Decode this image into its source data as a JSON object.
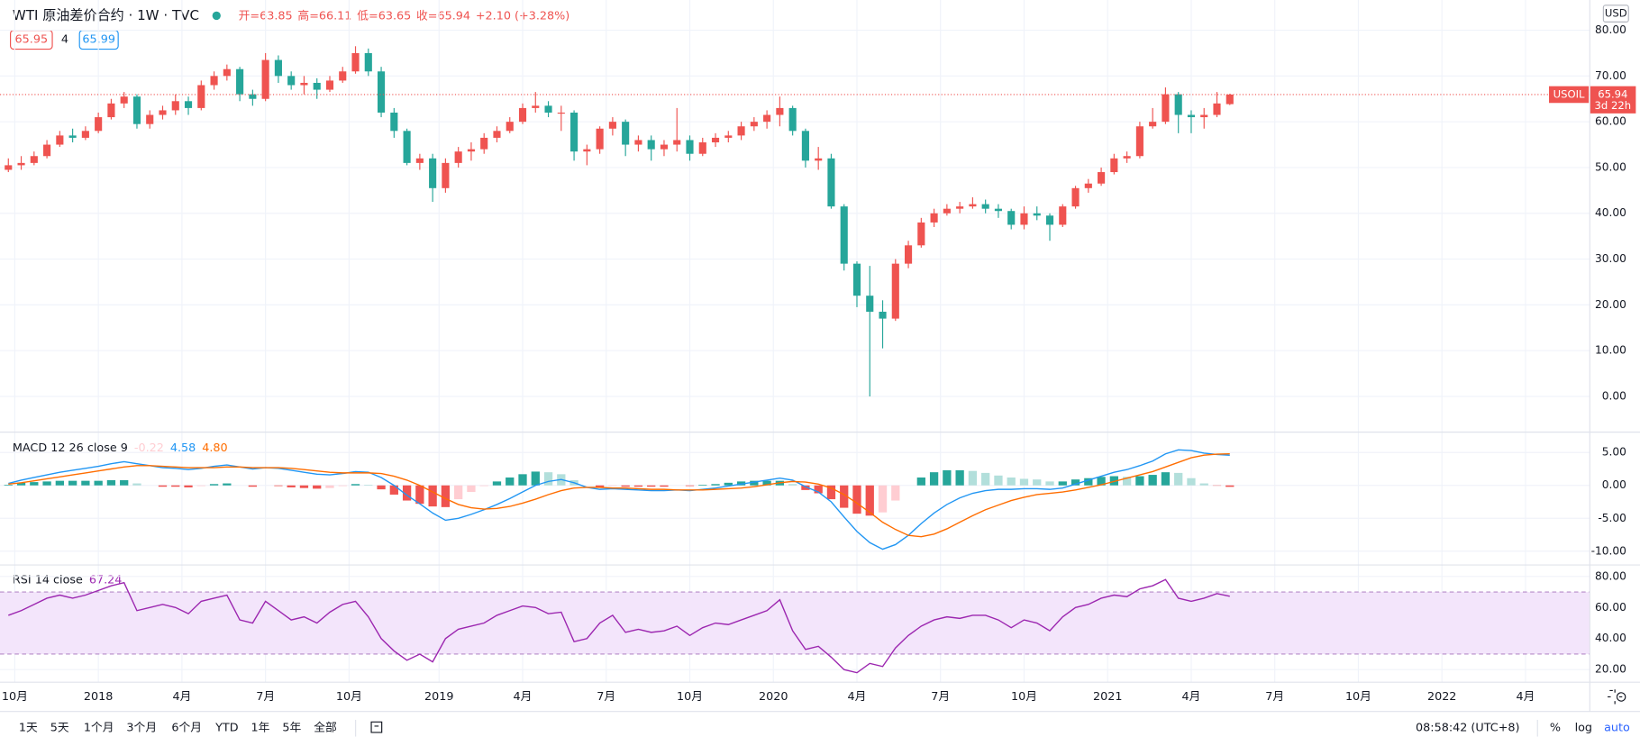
{
  "header": {
    "symbol": "WTI 原油差价合约 · 1W · TVC",
    "ohlc": [
      "开=63.85",
      "高=66.11",
      "低=63.65",
      "收=65.94"
    ],
    "change": "+2.10 (+3.28%)",
    "bid": "65.95",
    "spread": "4",
    "ask": "65.99"
  },
  "chart_data": [
    {
      "type": "candlestick",
      "currency": "USD",
      "up_color": "#ef5350",
      "down_color": "#26a69a",
      "grid": true,
      "candles": [
        [
          49.5,
          52,
          49,
          50.5
        ],
        [
          50.5,
          52.5,
          49.5,
          51
        ],
        [
          51,
          53.5,
          50.5,
          52.5
        ],
        [
          52.5,
          56,
          52,
          55
        ],
        [
          55,
          58,
          54.5,
          57
        ],
        [
          57,
          58.5,
          55.5,
          56.5
        ],
        [
          56.5,
          59,
          56,
          58
        ],
        [
          58,
          62,
          57.5,
          61
        ],
        [
          61,
          65,
          60.5,
          64
        ],
        [
          64,
          66.5,
          63,
          65.5
        ],
        [
          65.5,
          66,
          58.5,
          59.5
        ],
        [
          59.5,
          62.5,
          58.5,
          61.5
        ],
        [
          61.5,
          63.5,
          60.5,
          62.5
        ],
        [
          62.5,
          66,
          61.5,
          64.5
        ],
        [
          64.5,
          65.5,
          61.5,
          63
        ],
        [
          63,
          69,
          62.5,
          68
        ],
        [
          68,
          71,
          67,
          70
        ],
        [
          70,
          72.5,
          69,
          71.5
        ],
        [
          71.5,
          72,
          64.5,
          66
        ],
        [
          66,
          67,
          63.5,
          65
        ],
        [
          65,
          75,
          64.5,
          73.5
        ],
        [
          73.5,
          74.5,
          68.5,
          70
        ],
        [
          70,
          71,
          67,
          68
        ],
        [
          68,
          70,
          66,
          68.5
        ],
        [
          68.5,
          69.5,
          65,
          67
        ],
        [
          67,
          70,
          66.5,
          69
        ],
        [
          69,
          72,
          68.5,
          71
        ],
        [
          71,
          76.5,
          70.5,
          75
        ],
        [
          75,
          76,
          70,
          71
        ],
        [
          71,
          72,
          61,
          62
        ],
        [
          62,
          63,
          56.5,
          58
        ],
        [
          58,
          58.5,
          50.5,
          51
        ],
        [
          51,
          53,
          49.5,
          52
        ],
        [
          52,
          53,
          42.5,
          45.5
        ],
        [
          45.5,
          52,
          44.5,
          51
        ],
        [
          51,
          54.5,
          50,
          53.5
        ],
        [
          53.5,
          55.5,
          51.5,
          54
        ],
        [
          54,
          57.5,
          53,
          56.5
        ],
        [
          56.5,
          59,
          55.5,
          58
        ],
        [
          58,
          61,
          57.5,
          60
        ],
        [
          60,
          64,
          59.5,
          63
        ],
        [
          63,
          66.5,
          62,
          63.5
        ],
        [
          63.5,
          64.5,
          61,
          62
        ],
        [
          62,
          63.5,
          58,
          62
        ],
        [
          62,
          62.5,
          51.5,
          53.5
        ],
        [
          53.5,
          55,
          50.5,
          54
        ],
        [
          54,
          59,
          53,
          58.5
        ],
        [
          58.5,
          61,
          57,
          60
        ],
        [
          60,
          60.5,
          52.5,
          55
        ],
        [
          55,
          57,
          53.5,
          56
        ],
        [
          56,
          57,
          51.5,
          54
        ],
        [
          54,
          56,
          52.5,
          55
        ],
        [
          55,
          63,
          53.5,
          56
        ],
        [
          56,
          57,
          51.5,
          53
        ],
        [
          53,
          56.5,
          52.5,
          55.5
        ],
        [
          55.5,
          57.5,
          54.5,
          56.5
        ],
        [
          56.5,
          58,
          55.5,
          57
        ],
        [
          57,
          60,
          56,
          59
        ],
        [
          59,
          61,
          58,
          60
        ],
        [
          60,
          62.5,
          58.5,
          61.5
        ],
        [
          61.5,
          65.5,
          59,
          63
        ],
        [
          63,
          63.5,
          57,
          58
        ],
        [
          58,
          58.5,
          50,
          51.5
        ],
        [
          51.5,
          54.5,
          49.5,
          52
        ],
        [
          52,
          53,
          41,
          41.5
        ],
        [
          41.5,
          42,
          27.5,
          29
        ],
        [
          29,
          29.5,
          19.5,
          22
        ],
        [
          22,
          28.5,
          0,
          18.5
        ],
        [
          18.5,
          21,
          10.5,
          17
        ],
        [
          17,
          30,
          16.5,
          29
        ],
        [
          29,
          34,
          28,
          33
        ],
        [
          33,
          39,
          32.5,
          38
        ],
        [
          38,
          41,
          37,
          40
        ],
        [
          40,
          42,
          39.5,
          41
        ],
        [
          41,
          42.5,
          40,
          41.5
        ],
        [
          41.5,
          43.5,
          41,
          42
        ],
        [
          42,
          43,
          40,
          41
        ],
        [
          41,
          42,
          39,
          40.5
        ],
        [
          40.5,
          41,
          36.5,
          37.5
        ],
        [
          37.5,
          41.5,
          36.5,
          40
        ],
        [
          40,
          41.5,
          38.5,
          39.5
        ],
        [
          39.5,
          40,
          34,
          37.5
        ],
        [
          37.5,
          42,
          37,
          41.5
        ],
        [
          41.5,
          46,
          41,
          45.5
        ],
        [
          45.5,
          47.5,
          44.5,
          46.5
        ],
        [
          46.5,
          50,
          46,
          49
        ],
        [
          49,
          53,
          48.5,
          52
        ],
        [
          52,
          53.5,
          51,
          52.5
        ],
        [
          52.5,
          60,
          52,
          59
        ],
        [
          59,
          63,
          58.5,
          60
        ],
        [
          60,
          67.5,
          59.5,
          66
        ],
        [
          66,
          66.5,
          57.5,
          61.5
        ],
        [
          61.5,
          62.5,
          57.5,
          61
        ],
        [
          61,
          63,
          58.5,
          61.5
        ],
        [
          61.5,
          66.5,
          61,
          64
        ],
        [
          63.85,
          66.11,
          63.65,
          65.94
        ]
      ],
      "last_price": {
        "name": "USOIL",
        "value": 65.94,
        "countdown": "3d 22h"
      },
      "xlim": [
        -0.65,
        123
      ],
      "xticks": [
        {
          "value": 0.5,
          "label": "10月"
        },
        {
          "value": 7,
          "label": "2018"
        },
        {
          "value": 13.5,
          "label": "4月"
        },
        {
          "value": 20,
          "label": "7月"
        },
        {
          "value": 26.5,
          "label": "10月"
        },
        {
          "value": 33.5,
          "label": "2019"
        },
        {
          "value": 40,
          "label": "4月"
        },
        {
          "value": 46.5,
          "label": "7月"
        },
        {
          "value": 53,
          "label": "10月"
        },
        {
          "value": 59.5,
          "label": "2020"
        },
        {
          "value": 66,
          "label": "4月"
        },
        {
          "value": 72.5,
          "label": "7月"
        },
        {
          "value": 79,
          "label": "10月"
        },
        {
          "value": 85.5,
          "label": "2021"
        },
        {
          "value": 92,
          "label": "4月"
        },
        {
          "value": 98.5,
          "label": "7月"
        },
        {
          "value": 105,
          "label": "10月"
        },
        {
          "value": 111.5,
          "label": "2022"
        },
        {
          "value": 118,
          "label": "4月"
        }
      ],
      "ylim": [
        -7.8,
        86.6
      ],
      "yticks": [
        {
          "value": 0,
          "label": "0.00"
        },
        {
          "value": 10,
          "label": "10.00"
        },
        {
          "value": 20,
          "label": "20.00"
        },
        {
          "value": 30,
          "label": "30.00"
        },
        {
          "value": 40,
          "label": "40.00"
        },
        {
          "value": 50,
          "label": "50.00"
        },
        {
          "value": 60,
          "label": "60.00"
        },
        {
          "value": 70,
          "label": "70.00"
        },
        {
          "value": 80,
          "label": "80.00"
        }
      ]
    },
    {
      "type": "macd",
      "title": "MACD 12 26 close 9",
      "ylim": [
        -12.1,
        8.1
      ],
      "yticks": [
        {
          "value": 5,
          "label": "5.00"
        },
        {
          "value": 0,
          "label": "0.00"
        },
        {
          "value": -5,
          "label": "-5.00"
        },
        {
          "value": -10,
          "label": "-10.00"
        }
      ],
      "histogram": {
        "value_label": "-0.22",
        "colors": [
          "#26a69a",
          "#b2dfdb",
          "#ef5350",
          "#ffcdd2"
        ],
        "values": [
          0.1,
          0.4,
          0.5,
          0.6,
          0.7,
          0.7,
          0.7,
          0.7,
          0.8,
          0.8,
          0.3,
          0,
          -0.2,
          -0.2,
          -0.3,
          -0.1,
          0.2,
          0.3,
          0,
          -0.2,
          0,
          -0.1,
          -0.3,
          -0.4,
          -0.5,
          -0.4,
          -0.1,
          0.2,
          0.1,
          -0.6,
          -1.4,
          -2.3,
          -2.8,
          -3.2,
          -3.3,
          -2.1,
          -1.0,
          -0.1,
          0.6,
          1.2,
          1.7,
          2.1,
          2.0,
          1.7,
          0.8,
          0,
          -0.3,
          -0.1,
          -0.2,
          -0.2,
          -0.2,
          -0.2,
          0,
          -0.1,
          0.1,
          0.2,
          0.4,
          0.6,
          0.7,
          0.7,
          0.7,
          0.2,
          -0.7,
          -1.2,
          -2.1,
          -3.4,
          -4.3,
          -4.6,
          -4.1,
          -2.3,
          0,
          1.2,
          2.0,
          2.3,
          2.3,
          2.2,
          1.9,
          1.5,
          1.2,
          1.0,
          0.9,
          0.6,
          0.6,
          0.9,
          1.1,
          1.3,
          1.4,
          1.3,
          1.4,
          1.6,
          2.0,
          1.9,
          1.1,
          0.3,
          -0.05,
          -0.22
        ]
      },
      "series": [
        {
          "color": "#2196f3",
          "value_label": "4.58",
          "values": [
            0.3,
            0.8,
            1.2,
            1.6,
            2.0,
            2.3,
            2.6,
            2.9,
            3.3,
            3.6,
            3.3,
            3.0,
            2.7,
            2.6,
            2.4,
            2.6,
            2.9,
            3.1,
            2.8,
            2.5,
            2.7,
            2.6,
            2.3,
            2.0,
            1.7,
            1.6,
            1.8,
            2.1,
            2.0,
            1.2,
            0.0,
            -1.5,
            -2.8,
            -4.2,
            -5.3,
            -5.0,
            -4.4,
            -3.7,
            -2.9,
            -2.0,
            -1.0,
            0.0,
            0.6,
            0.9,
            0.4,
            -0.3,
            -0.6,
            -0.5,
            -0.6,
            -0.7,
            -0.8,
            -0.8,
            -0.7,
            -0.8,
            -0.6,
            -0.4,
            -0.1,
            0.2,
            0.5,
            0.8,
            1.1,
            0.8,
            -0.2,
            -1.0,
            -2.5,
            -4.8,
            -7.0,
            -8.7,
            -9.7,
            -9.0,
            -7.6,
            -5.8,
            -4.2,
            -2.9,
            -1.9,
            -1.2,
            -0.8,
            -0.6,
            -0.6,
            -0.5,
            -0.5,
            -0.6,
            -0.4,
            0.2,
            0.8,
            1.4,
            2.0,
            2.4,
            3.0,
            3.7,
            4.8,
            5.4,
            5.3,
            4.9,
            4.7,
            4.58
          ]
        },
        {
          "color": "#ff6d00",
          "value_label": "4.80",
          "values": [
            0.2,
            0.4,
            0.7,
            1.0,
            1.3,
            1.6,
            1.9,
            2.2,
            2.5,
            2.8,
            3.0,
            3.0,
            2.9,
            2.8,
            2.7,
            2.7,
            2.7,
            2.8,
            2.8,
            2.7,
            2.7,
            2.7,
            2.6,
            2.4,
            2.2,
            2.0,
            1.9,
            1.9,
            1.9,
            1.8,
            1.4,
            0.8,
            0.0,
            -1.0,
            -2.0,
            -2.9,
            -3.4,
            -3.6,
            -3.5,
            -3.2,
            -2.7,
            -2.1,
            -1.4,
            -0.8,
            -0.4,
            -0.3,
            -0.3,
            -0.4,
            -0.4,
            -0.5,
            -0.6,
            -0.6,
            -0.7,
            -0.7,
            -0.7,
            -0.6,
            -0.5,
            -0.4,
            -0.2,
            0.1,
            0.4,
            0.6,
            0.5,
            0.2,
            -0.4,
            -1.4,
            -2.7,
            -4.1,
            -5.6,
            -6.7,
            -7.6,
            -7.8,
            -7.4,
            -6.6,
            -5.6,
            -4.6,
            -3.7,
            -3.0,
            -2.3,
            -1.8,
            -1.4,
            -1.2,
            -1.0,
            -0.7,
            -0.3,
            0.1,
            0.6,
            1.1,
            1.6,
            2.1,
            2.8,
            3.5,
            4.2,
            4.6,
            4.75,
            4.8
          ]
        }
      ]
    },
    {
      "type": "rsi",
      "title": "RSI 14 close",
      "value_label": "67.24",
      "color": "#9c27b0",
      "band_color": "#f3e5fb",
      "bands": [
        70,
        30
      ],
      "ylim": [
        11.9,
        87.4
      ],
      "yticks": [
        {
          "value": 80,
          "label": "80.00"
        },
        {
          "value": 60,
          "label": "60.00"
        },
        {
          "value": 40,
          "label": "40.00"
        },
        {
          "value": 20,
          "label": "20.00"
        }
      ],
      "values": [
        55,
        58,
        62,
        66,
        68,
        66,
        68,
        71,
        74,
        76,
        58,
        60,
        62,
        60,
        56,
        64,
        66,
        68,
        52,
        50,
        64,
        58,
        52,
        54,
        50,
        57,
        62,
        64,
        54,
        40,
        32,
        26,
        30,
        25,
        40,
        46,
        48,
        50,
        55,
        58,
        61,
        60,
        56,
        57,
        38,
        40,
        50,
        55,
        44,
        46,
        44,
        45,
        48,
        42,
        47,
        50,
        49,
        52,
        55,
        58,
        65,
        45,
        33,
        35,
        28,
        20,
        18,
        24,
        22,
        34,
        42,
        48,
        52,
        54,
        53,
        55,
        55,
        52,
        47,
        52,
        50,
        45,
        54,
        60,
        62,
        66,
        68,
        67,
        72,
        74,
        78,
        66,
        64,
        66,
        69,
        67.24
      ]
    }
  ],
  "toolbar": {
    "ranges": [
      "1天",
      "5天",
      "1个月",
      "3个月",
      "6个月",
      "YTD",
      "1年",
      "5年",
      "全部"
    ],
    "clock": "08:58:42 (UTC+8)",
    "options": [
      "%",
      "log",
      "auto"
    ]
  }
}
